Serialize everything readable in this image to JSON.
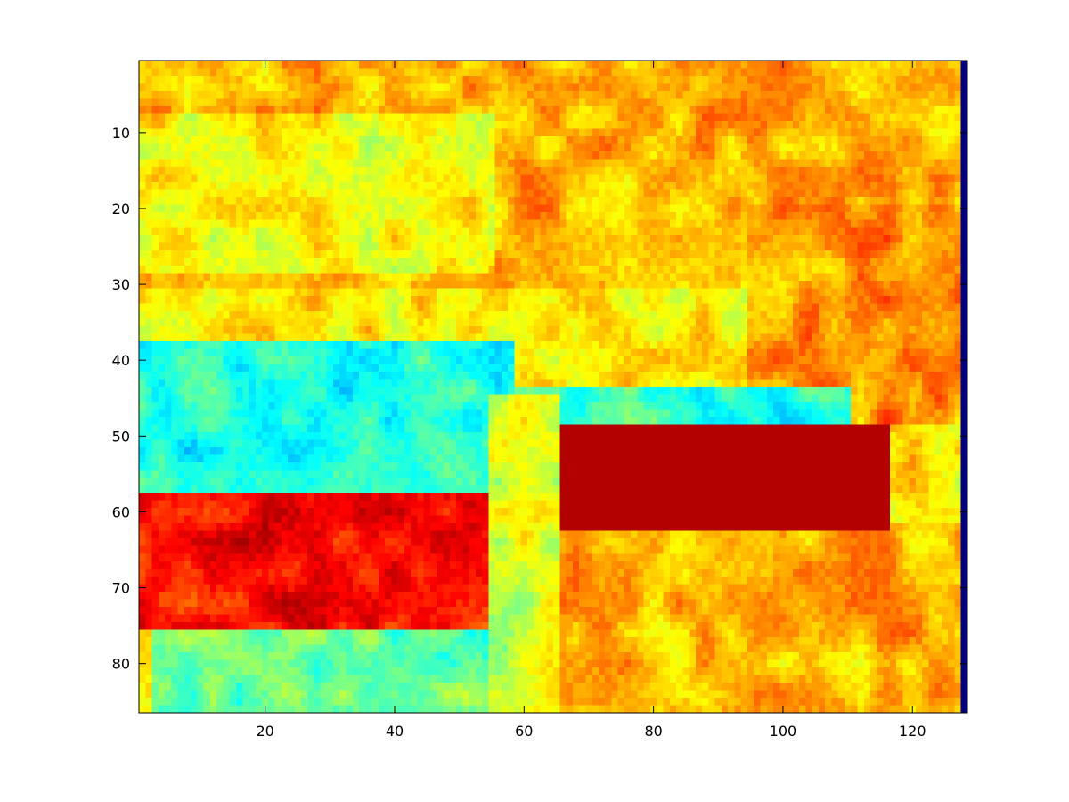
{
  "chart_data": {
    "type": "heatmap",
    "title": "",
    "xlabel": "",
    "ylabel": "",
    "colormap": "jet",
    "x_range": [
      1,
      128
    ],
    "y_range": [
      1,
      86
    ],
    "y_direction": "top-to-bottom",
    "grid": false,
    "x_ticks": [
      20,
      40,
      60,
      80,
      100,
      120
    ],
    "y_ticks": [
      10,
      20,
      30,
      40,
      50,
      60,
      70,
      80
    ],
    "x_tick_labels": [
      "20",
      "40",
      "60",
      "80",
      "100",
      "120"
    ],
    "y_tick_labels": [
      "10",
      "20",
      "30",
      "40",
      "50",
      "60",
      "70",
      "80"
    ],
    "value_scale": "normalized 0 (blue) to 1 (dark red)",
    "background_level": 0.64,
    "regions": [
      {
        "description": "upper foliage, orange/yellow",
        "x": [
          1,
          128
        ],
        "y": [
          1,
          30
        ],
        "level": 0.7
      },
      {
        "description": "left upper area, yellow",
        "x": [
          1,
          55
        ],
        "y": [
          8,
          28
        ],
        "level": 0.62
      },
      {
        "description": "right side, orange",
        "x": [
          95,
          128
        ],
        "y": [
          20,
          48
        ],
        "level": 0.73
      },
      {
        "description": "cyan band left",
        "x": [
          1,
          58
        ],
        "y": [
          38,
          58
        ],
        "level": 0.4
      },
      {
        "description": "cyan streak center",
        "x": [
          40,
          110
        ],
        "y": [
          44,
          50
        ],
        "level": 0.42
      },
      {
        "description": "lower-left green area",
        "x": [
          3,
          55
        ],
        "y": [
          76,
          86
        ],
        "level": 0.48
      },
      {
        "description": "bottom-right orange",
        "x": [
          65,
          128
        ],
        "y": [
          62,
          86
        ],
        "level": 0.7
      },
      {
        "description": "left wing, red",
        "x": [
          1,
          55
        ],
        "y": [
          58,
          75
        ],
        "level": 0.86
      },
      {
        "description": "right wing, dark red",
        "x": [
          66,
          116
        ],
        "y": [
          49,
          62
        ],
        "level": 0.95
      },
      {
        "description": "fuselage, yellow",
        "x": [
          55,
          65
        ],
        "y": [
          45,
          86
        ],
        "level": 0.58
      }
    ],
    "edge_column": {
      "x": 128,
      "level": 0.0
    }
  }
}
